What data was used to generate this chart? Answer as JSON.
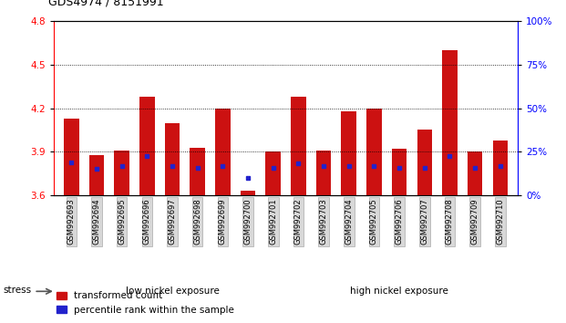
{
  "title": "GDS4974 / 8151991",
  "samples": [
    "GSM992693",
    "GSM992694",
    "GSM992695",
    "GSM992696",
    "GSM992697",
    "GSM992698",
    "GSM992699",
    "GSM992700",
    "GSM992701",
    "GSM992702",
    "GSM992703",
    "GSM992704",
    "GSM992705",
    "GSM992706",
    "GSM992707",
    "GSM992708",
    "GSM992709",
    "GSM992710"
  ],
  "red_values": [
    4.13,
    3.88,
    3.91,
    4.28,
    4.1,
    3.93,
    4.2,
    3.63,
    3.9,
    4.28,
    3.91,
    4.18,
    4.2,
    3.92,
    4.05,
    4.6,
    3.9,
    3.98
  ],
  "blue_values": [
    3.83,
    3.78,
    3.8,
    3.87,
    3.8,
    3.79,
    3.8,
    3.72,
    3.79,
    3.82,
    3.8,
    3.8,
    3.8,
    3.79,
    3.79,
    3.87,
    3.79,
    3.8
  ],
  "base": 3.6,
  "ylim_left": [
    3.6,
    4.8
  ],
  "ylim_right": [
    0,
    100
  ],
  "yticks_left": [
    3.6,
    3.9,
    4.2,
    4.5,
    4.8
  ],
  "yticks_right": [
    0,
    25,
    50,
    75,
    100
  ],
  "bar_color": "#cc1111",
  "dot_color": "#2222cc",
  "bar_width": 0.6,
  "low_nickel_count": 9,
  "high_nickel_count": 9,
  "group_label_low": "low nickel exposure",
  "group_label_high": "high nickel exposure",
  "stress_label": "stress",
  "legend_red": "transformed count",
  "legend_blue": "percentile rank within the sample",
  "background_color": "#ffffff",
  "plot_bg": "#ffffff",
  "tick_label_bg": "#d8d8d8",
  "tick_label_border": "#999999",
  "group_bar_low_color": "#aaddaa",
  "group_bar_high_color": "#55cc55",
  "stress_arrow_color": "#555555"
}
